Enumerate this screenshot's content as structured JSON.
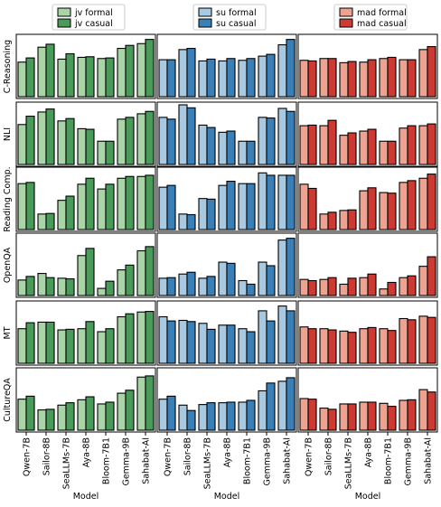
{
  "chart_data": {
    "type": "bar",
    "layout": "grid",
    "categories": [
      "Qwen-7B",
      "Sailor-8B",
      "SeaLLMs-7B",
      "Aya-8B",
      "Bloom-7B1",
      "Gemma-9B",
      "Sahabat-AI"
    ],
    "xlabel": "Model",
    "row_labels": [
      "C-Reasoning",
      "NLI",
      "Reading Comp.",
      "OpenQA",
      "MT",
      "CultureQA"
    ],
    "columns": [
      {
        "legend_position": "top-center",
        "series": [
          {
            "name": "jv formal",
            "color": "#a8d5a5"
          },
          {
            "name": "jv casual",
            "color": "#4a9a5a"
          }
        ],
        "values": [
          [
            [
              0.58,
              0.65
            ],
            [
              0.83,
              0.88
            ],
            [
              0.63,
              0.72
            ],
            [
              0.66,
              0.67
            ],
            [
              0.64,
              0.65
            ],
            [
              0.81,
              0.86
            ],
            [
              0.89,
              0.96
            ]
          ],
          [
            [
              0.67,
              0.81
            ],
            [
              0.88,
              0.93
            ],
            [
              0.73,
              0.77
            ],
            [
              0.6,
              0.59
            ],
            [
              0.39,
              0.39
            ],
            [
              0.76,
              0.79
            ],
            [
              0.85,
              0.89
            ]
          ],
          [
            [
              0.77,
              0.79
            ],
            [
              0.26,
              0.27
            ],
            [
              0.49,
              0.56
            ],
            [
              0.76,
              0.86
            ],
            [
              0.68,
              0.76
            ],
            [
              0.86,
              0.89
            ],
            [
              0.89,
              0.91
            ]
          ],
          [
            [
              0.26,
              0.32
            ],
            [
              0.37,
              0.3
            ],
            [
              0.29,
              0.28
            ],
            [
              0.67,
              0.79
            ],
            [
              0.12,
              0.24
            ],
            [
              0.43,
              0.51
            ],
            [
              0.75,
              0.82
            ]
          ],
          [
            [
              0.58,
              0.68
            ],
            [
              0.69,
              0.69
            ],
            [
              0.56,
              0.57
            ],
            [
              0.58,
              0.7
            ],
            [
              0.53,
              0.58
            ],
            [
              0.78,
              0.83
            ],
            [
              0.86,
              0.87
            ]
          ],
          [
            [
              0.52,
              0.57
            ],
            [
              0.34,
              0.35
            ],
            [
              0.42,
              0.46
            ],
            [
              0.51,
              0.56
            ],
            [
              0.44,
              0.47
            ],
            [
              0.62,
              0.67
            ],
            [
              0.89,
              0.91
            ]
          ]
        ]
      },
      {
        "legend_position": "top-center",
        "series": [
          {
            "name": "su formal",
            "color": "#a8c9e2"
          },
          {
            "name": "su casual",
            "color": "#3a7fb6"
          }
        ],
        "values": [
          [
            [
              0.62,
              0.62
            ],
            [
              0.79,
              0.81
            ],
            [
              0.6,
              0.63
            ],
            [
              0.6,
              0.64
            ],
            [
              0.61,
              0.64
            ],
            [
              0.68,
              0.71
            ],
            [
              0.87,
              0.96
            ]
          ],
          [
            [
              0.79,
              0.76
            ],
            [
              1.0,
              0.95
            ],
            [
              0.66,
              0.62
            ],
            [
              0.54,
              0.56
            ],
            [
              0.39,
              0.39
            ],
            [
              0.79,
              0.78
            ],
            [
              0.94,
              0.89
            ]
          ],
          [
            [
              0.71,
              0.74
            ],
            [
              0.26,
              0.25
            ],
            [
              0.52,
              0.51
            ],
            [
              0.74,
              0.81
            ],
            [
              0.77,
              0.77
            ],
            [
              0.95,
              0.91
            ],
            [
              0.91,
              0.91
            ]
          ],
          [
            [
              0.29,
              0.3
            ],
            [
              0.36,
              0.39
            ],
            [
              0.29,
              0.32
            ],
            [
              0.56,
              0.54
            ],
            [
              0.25,
              0.19
            ],
            [
              0.56,
              0.5
            ],
            [
              0.93,
              0.96
            ]
          ],
          [
            [
              0.78,
              0.71
            ],
            [
              0.72,
              0.7
            ],
            [
              0.67,
              0.57
            ],
            [
              0.64,
              0.64
            ],
            [
              0.58,
              0.53
            ],
            [
              0.88,
              0.71
            ],
            [
              0.96,
              0.88
            ]
          ],
          [
            [
              0.52,
              0.57
            ],
            [
              0.42,
              0.33
            ],
            [
              0.43,
              0.46
            ],
            [
              0.46,
              0.47
            ],
            [
              0.47,
              0.5
            ],
            [
              0.66,
              0.79
            ],
            [
              0.82,
              0.88
            ]
          ]
        ]
      },
      {
        "legend_position": "top-center",
        "series": [
          {
            "name": "mad formal",
            "color": "#f0a290"
          },
          {
            "name": "mad casual",
            "color": "#cc3b33"
          }
        ],
        "values": [
          [
            [
              0.61,
              0.6
            ],
            [
              0.64,
              0.64
            ],
            [
              0.57,
              0.59
            ],
            [
              0.58,
              0.62
            ],
            [
              0.64,
              0.66
            ],
            [
              0.62,
              0.62
            ],
            [
              0.79,
              0.84
            ]
          ],
          [
            [
              0.65,
              0.66
            ],
            [
              0.65,
              0.74
            ],
            [
              0.49,
              0.53
            ],
            [
              0.56,
              0.59
            ],
            [
              0.39,
              0.39
            ],
            [
              0.61,
              0.65
            ],
            [
              0.65,
              0.68
            ]
          ],
          [
            [
              0.76,
              0.69
            ],
            [
              0.26,
              0.29
            ],
            [
              0.32,
              0.33
            ],
            [
              0.65,
              0.7
            ],
            [
              0.62,
              0.61
            ],
            [
              0.79,
              0.82
            ],
            [
              0.86,
              0.93
            ]
          ],
          [
            [
              0.27,
              0.25
            ],
            [
              0.27,
              0.3
            ],
            [
              0.19,
              0.29
            ],
            [
              0.3,
              0.36
            ],
            [
              0.11,
              0.22
            ],
            [
              0.3,
              0.33
            ],
            [
              0.49,
              0.65
            ]
          ],
          [
            [
              0.61,
              0.58
            ],
            [
              0.58,
              0.56
            ],
            [
              0.54,
              0.52
            ],
            [
              0.58,
              0.6
            ],
            [
              0.58,
              0.55
            ],
            [
              0.75,
              0.73
            ],
            [
              0.79,
              0.77
            ]
          ],
          [
            [
              0.53,
              0.52
            ],
            [
              0.37,
              0.35
            ],
            [
              0.44,
              0.44
            ],
            [
              0.47,
              0.47
            ],
            [
              0.45,
              0.4
            ],
            [
              0.5,
              0.51
            ],
            [
              0.68,
              0.64
            ]
          ]
        ]
      }
    ],
    "grid": false
  }
}
